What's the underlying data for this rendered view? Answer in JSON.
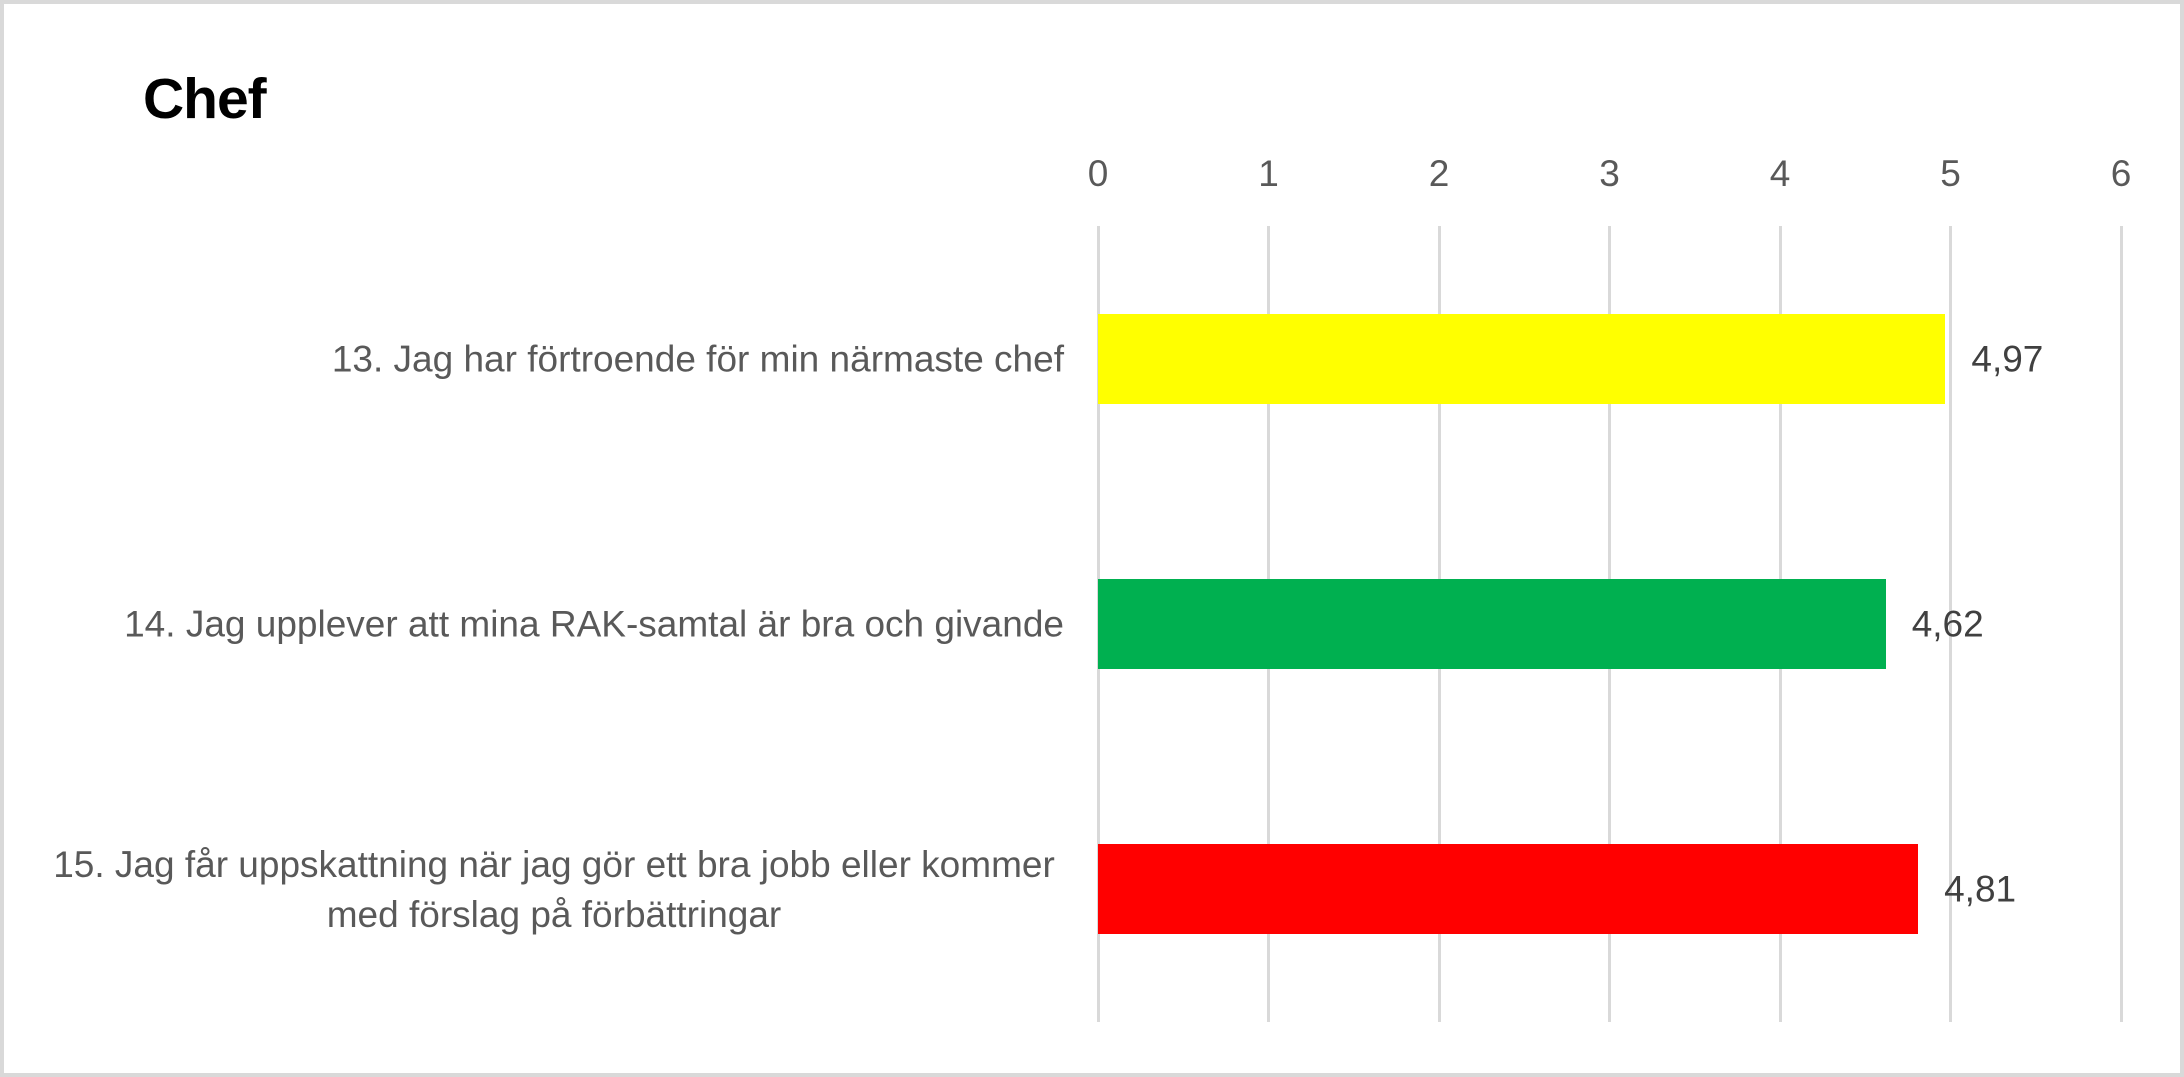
{
  "chart": {
    "title": "Chef",
    "x_tick_labels": [
      "0",
      "1",
      "2",
      "3",
      "4",
      "5",
      "6"
    ],
    "bars": [
      {
        "label": "13. Jag har förtroende för min närmaste chef",
        "value_label": "4,97"
      },
      {
        "label": "14. Jag upplever att mina RAK-samtal är bra och givande",
        "value_label": "4,62"
      },
      {
        "label": "15. Jag får uppskattning när jag gör ett bra jobb eller kommer med förslag på förbättringar",
        "value_label": "4,81"
      }
    ]
  },
  "chart_data": {
    "type": "bar",
    "orientation": "horizontal",
    "title": "Chef",
    "categories": [
      "13. Jag har förtroende för min närmaste chef",
      "14. Jag upplever att mina RAK-samtal är bra och givande",
      "15. Jag får uppskattning när jag gör ett bra jobb eller kommer med förslag på förbättringar"
    ],
    "values": [
      4.97,
      4.62,
      4.81
    ],
    "value_labels": [
      "4,97",
      "4,62",
      "4,81"
    ],
    "bar_colors": [
      "#FFFF00",
      "#00B050",
      "#FF0000"
    ],
    "xlim": [
      0,
      6
    ],
    "x_ticks": [
      0,
      1,
      2,
      3,
      4,
      5,
      6
    ],
    "x_axis_position": "top",
    "gridlines": "vertical",
    "gridline_color": "#D9D9D9",
    "label_color": "#595959",
    "value_label_color": "#404040",
    "decimal_separator": ",",
    "legend": "none"
  }
}
